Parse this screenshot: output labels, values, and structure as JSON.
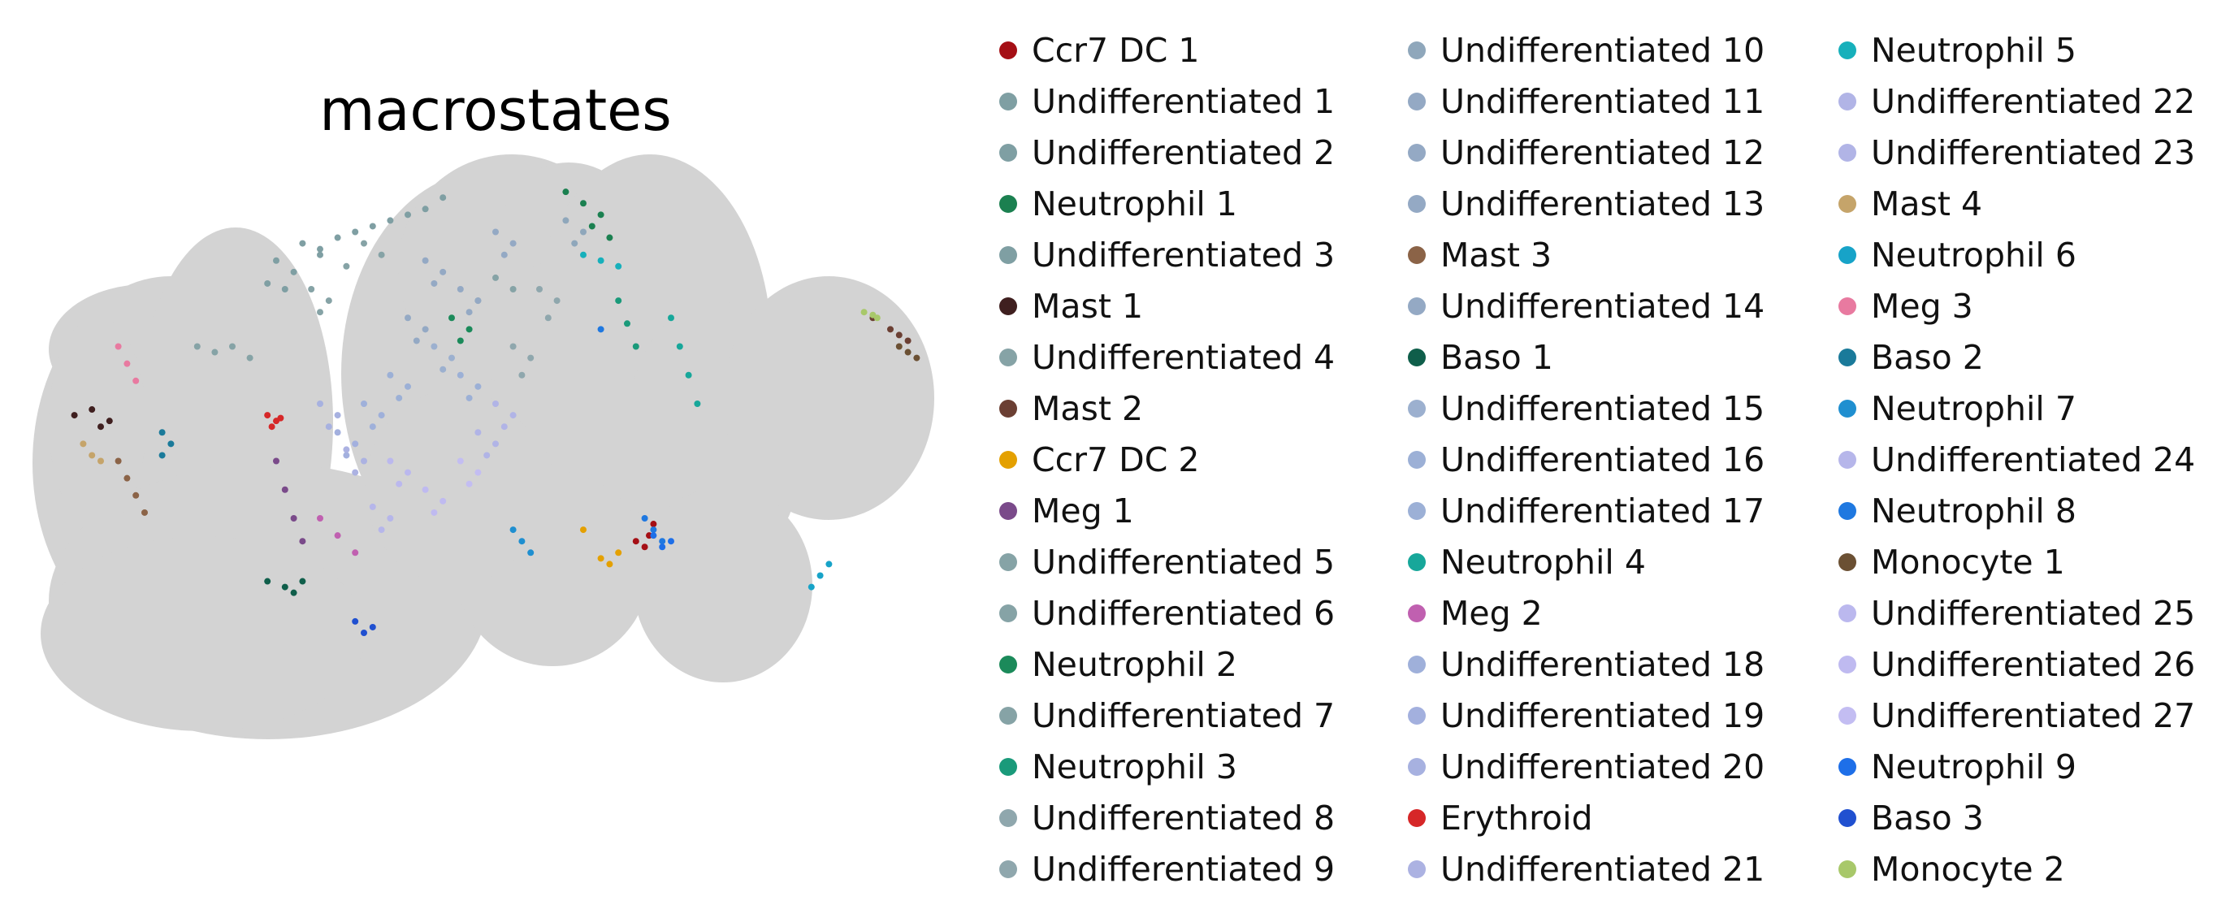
{
  "chart_data": {
    "type": "scatter",
    "title": "macrostates",
    "xlabel": "",
    "ylabel": "",
    "grid": false,
    "legend_position": "right",
    "background_color": "#d3d3d3",
    "series": [
      {
        "name": "Ccr7 DC 1",
        "color": "#a50f15",
        "points": [
          [
            0.66,
            0.64
          ],
          [
            0.68,
            0.61
          ],
          [
            0.675,
            0.63
          ],
          [
            0.67,
            0.65
          ]
        ]
      },
      {
        "name": "Undifferentiated 1",
        "color": "#7f9fa3",
        "points": [
          [
            0.28,
            0.12
          ],
          [
            0.3,
            0.13
          ],
          [
            0.32,
            0.11
          ],
          [
            0.34,
            0.1
          ],
          [
            0.3,
            0.14
          ]
        ]
      },
      {
        "name": "Undifferentiated 2",
        "color": "#7f9fa3",
        "points": [
          [
            0.36,
            0.09
          ],
          [
            0.38,
            0.08
          ],
          [
            0.4,
            0.07
          ],
          [
            0.42,
            0.06
          ],
          [
            0.44,
            0.04
          ]
        ]
      },
      {
        "name": "Neutrophil 1",
        "color": "#1b8050",
        "points": [
          [
            0.58,
            0.03
          ],
          [
            0.6,
            0.05
          ],
          [
            0.62,
            0.07
          ],
          [
            0.61,
            0.09
          ],
          [
            0.63,
            0.11
          ]
        ]
      },
      {
        "name": "Undifferentiated 3",
        "color": "#7f9fa3",
        "points": [
          [
            0.25,
            0.15
          ],
          [
            0.27,
            0.17
          ],
          [
            0.24,
            0.19
          ],
          [
            0.26,
            0.2
          ]
        ]
      },
      {
        "name": "Mast 1",
        "color": "#3f1f1f",
        "points": [
          [
            0.02,
            0.42
          ],
          [
            0.04,
            0.41
          ],
          [
            0.06,
            0.43
          ],
          [
            0.05,
            0.44
          ]
        ]
      },
      {
        "name": "Undifferentiated 4",
        "color": "#86a3a6",
        "points": [
          [
            0.16,
            0.3
          ],
          [
            0.18,
            0.31
          ],
          [
            0.2,
            0.3
          ],
          [
            0.22,
            0.32
          ]
        ]
      },
      {
        "name": "Mast 2",
        "color": "#6b3f33",
        "points": [
          [
            0.93,
            0.25
          ],
          [
            0.95,
            0.27
          ],
          [
            0.96,
            0.28
          ],
          [
            0.97,
            0.29
          ]
        ]
      },
      {
        "name": "Ccr7 DC 2",
        "color": "#e4a000",
        "points": [
          [
            0.62,
            0.67
          ],
          [
            0.63,
            0.68
          ],
          [
            0.64,
            0.66
          ],
          [
            0.6,
            0.62
          ]
        ]
      },
      {
        "name": "Meg 1",
        "color": "#7a4a8a",
        "points": [
          [
            0.25,
            0.5
          ],
          [
            0.26,
            0.55
          ],
          [
            0.27,
            0.6
          ],
          [
            0.28,
            0.64
          ]
        ]
      },
      {
        "name": "Undifferentiated 5",
        "color": "#86a3a6",
        "points": [
          [
            0.35,
            0.12
          ],
          [
            0.37,
            0.14
          ],
          [
            0.33,
            0.16
          ]
        ]
      },
      {
        "name": "Undifferentiated 6",
        "color": "#86a3a6",
        "points": [
          [
            0.5,
            0.18
          ],
          [
            0.52,
            0.2
          ],
          [
            0.48,
            0.22
          ]
        ]
      },
      {
        "name": "Neutrophil 2",
        "color": "#1b8a5a",
        "points": [
          [
            0.45,
            0.25
          ],
          [
            0.47,
            0.27
          ],
          [
            0.46,
            0.29
          ]
        ]
      },
      {
        "name": "Undifferentiated 7",
        "color": "#86a3a6",
        "points": [
          [
            0.29,
            0.2
          ],
          [
            0.31,
            0.22
          ],
          [
            0.3,
            0.24
          ]
        ]
      },
      {
        "name": "Neutrophil 3",
        "color": "#1a9a7a",
        "points": [
          [
            0.64,
            0.22
          ],
          [
            0.65,
            0.26
          ],
          [
            0.66,
            0.3
          ]
        ]
      },
      {
        "name": "Undifferentiated 8",
        "color": "#8fa7ad",
        "points": [
          [
            0.55,
            0.2
          ],
          [
            0.57,
            0.22
          ],
          [
            0.56,
            0.25
          ]
        ]
      },
      {
        "name": "Undifferentiated 9",
        "color": "#8fa7ad",
        "points": [
          [
            0.52,
            0.3
          ],
          [
            0.54,
            0.32
          ],
          [
            0.53,
            0.35
          ]
        ]
      },
      {
        "name": "Undifferentiated 10",
        "color": "#8fa7bb",
        "points": [
          [
            0.58,
            0.08
          ],
          [
            0.6,
            0.1
          ],
          [
            0.59,
            0.12
          ]
        ]
      },
      {
        "name": "Undifferentiated 11",
        "color": "#94a9c4",
        "points": [
          [
            0.42,
            0.15
          ],
          [
            0.44,
            0.17
          ],
          [
            0.43,
            0.19
          ]
        ]
      },
      {
        "name": "Undifferentiated 12",
        "color": "#94a9c4",
        "points": [
          [
            0.5,
            0.1
          ],
          [
            0.52,
            0.12
          ],
          [
            0.51,
            0.14
          ]
        ]
      },
      {
        "name": "Undifferentiated 13",
        "color": "#94a9c4",
        "points": [
          [
            0.46,
            0.2
          ],
          [
            0.48,
            0.22
          ],
          [
            0.47,
            0.24
          ]
        ]
      },
      {
        "name": "Mast 3",
        "color": "#8b6347",
        "points": [
          [
            0.07,
            0.5
          ],
          [
            0.08,
            0.53
          ],
          [
            0.09,
            0.56
          ],
          [
            0.1,
            0.59
          ]
        ]
      },
      {
        "name": "Undifferentiated 14",
        "color": "#94a9c4",
        "points": [
          [
            0.4,
            0.25
          ],
          [
            0.42,
            0.27
          ],
          [
            0.41,
            0.29
          ]
        ]
      },
      {
        "name": "Baso 1",
        "color": "#0f5e4a",
        "points": [
          [
            0.24,
            0.71
          ],
          [
            0.26,
            0.72
          ],
          [
            0.28,
            0.71
          ],
          [
            0.27,
            0.73
          ]
        ]
      },
      {
        "name": "Undifferentiated 15",
        "color": "#9cb0cf",
        "points": [
          [
            0.43,
            0.3
          ],
          [
            0.45,
            0.32
          ],
          [
            0.44,
            0.34
          ]
        ]
      },
      {
        "name": "Undifferentiated 16",
        "color": "#9cb0d6",
        "points": [
          [
            0.46,
            0.35
          ],
          [
            0.48,
            0.37
          ],
          [
            0.47,
            0.39
          ]
        ]
      },
      {
        "name": "Undifferentiated 17",
        "color": "#9cb0d6",
        "points": [
          [
            0.38,
            0.35
          ],
          [
            0.4,
            0.37
          ],
          [
            0.39,
            0.39
          ]
        ]
      },
      {
        "name": "Neutrophil 4",
        "color": "#17a79a",
        "points": [
          [
            0.7,
            0.25
          ],
          [
            0.71,
            0.3
          ],
          [
            0.72,
            0.35
          ],
          [
            0.73,
            0.4
          ]
        ]
      },
      {
        "name": "Meg 2",
        "color": "#c060b0",
        "points": [
          [
            0.3,
            0.6
          ],
          [
            0.32,
            0.63
          ],
          [
            0.34,
            0.66
          ]
        ]
      },
      {
        "name": "Undifferentiated 18",
        "color": "#9fb0da",
        "points": [
          [
            0.35,
            0.4
          ],
          [
            0.37,
            0.42
          ],
          [
            0.36,
            0.44
          ]
        ]
      },
      {
        "name": "Undifferentiated 19",
        "color": "#a3b0de",
        "points": [
          [
            0.32,
            0.45
          ],
          [
            0.34,
            0.47
          ],
          [
            0.33,
            0.49
          ]
        ]
      },
      {
        "name": "Undifferentiated 20",
        "color": "#a7b1e0",
        "points": [
          [
            0.3,
            0.4
          ],
          [
            0.32,
            0.42
          ],
          [
            0.31,
            0.44
          ]
        ]
      },
      {
        "name": "Erythroid",
        "color": "#d62728",
        "points": [
          [
            0.24,
            0.42
          ],
          [
            0.25,
            0.43
          ],
          [
            0.245,
            0.44
          ],
          [
            0.255,
            0.425
          ]
        ]
      },
      {
        "name": "Undifferentiated 21",
        "color": "#acb2e2",
        "points": [
          [
            0.33,
            0.48
          ],
          [
            0.35,
            0.5
          ],
          [
            0.34,
            0.52
          ]
        ]
      },
      {
        "name": "Neutrophil 5",
        "color": "#17b0bb",
        "points": [
          [
            0.6,
            0.14
          ],
          [
            0.62,
            0.15
          ],
          [
            0.64,
            0.16
          ]
        ]
      },
      {
        "name": "Undifferentiated 22",
        "color": "#b1b4e6",
        "points": [
          [
            0.5,
            0.4
          ],
          [
            0.52,
            0.42
          ],
          [
            0.51,
            0.44
          ]
        ]
      },
      {
        "name": "Undifferentiated 23",
        "color": "#b1b4e6",
        "points": [
          [
            0.48,
            0.45
          ],
          [
            0.5,
            0.47
          ],
          [
            0.49,
            0.49
          ]
        ]
      },
      {
        "name": "Mast 4",
        "color": "#c5a46a",
        "points": [
          [
            0.03,
            0.47
          ],
          [
            0.04,
            0.49
          ],
          [
            0.05,
            0.5
          ]
        ]
      },
      {
        "name": "Neutrophil 6",
        "color": "#17a3c8",
        "points": [
          [
            0.86,
            0.72
          ],
          [
            0.87,
            0.7
          ],
          [
            0.88,
            0.68
          ]
        ]
      },
      {
        "name": "Meg 3",
        "color": "#e87aa0",
        "points": [
          [
            0.07,
            0.3
          ],
          [
            0.08,
            0.33
          ],
          [
            0.09,
            0.36
          ]
        ]
      },
      {
        "name": "Baso 2",
        "color": "#1a7a9a",
        "points": [
          [
            0.12,
            0.45
          ],
          [
            0.13,
            0.47
          ],
          [
            0.12,
            0.49
          ]
        ]
      },
      {
        "name": "Neutrophil 7",
        "color": "#1f8fd0",
        "points": [
          [
            0.52,
            0.62
          ],
          [
            0.53,
            0.64
          ],
          [
            0.54,
            0.66
          ]
        ]
      },
      {
        "name": "Undifferentiated 24",
        "color": "#b6b6ea",
        "points": [
          [
            0.36,
            0.58
          ],
          [
            0.38,
            0.6
          ],
          [
            0.37,
            0.62
          ]
        ]
      },
      {
        "name": "Neutrophil 8",
        "color": "#1f78e0",
        "points": [
          [
            0.67,
            0.6
          ],
          [
            0.68,
            0.62
          ],
          [
            0.69,
            0.64
          ],
          [
            0.62,
            0.27
          ]
        ]
      },
      {
        "name": "Monocyte 1",
        "color": "#6b5033",
        "points": [
          [
            0.96,
            0.3
          ],
          [
            0.97,
            0.31
          ],
          [
            0.98,
            0.32
          ]
        ]
      },
      {
        "name": "Undifferentiated 25",
        "color": "#bbb8ee",
        "points": [
          [
            0.38,
            0.5
          ],
          [
            0.4,
            0.52
          ],
          [
            0.39,
            0.54
          ]
        ]
      },
      {
        "name": "Undifferentiated 26",
        "color": "#bfbaf0",
        "points": [
          [
            0.42,
            0.55
          ],
          [
            0.44,
            0.57
          ],
          [
            0.43,
            0.59
          ]
        ]
      },
      {
        "name": "Undifferentiated 27",
        "color": "#c3bdf2",
        "points": [
          [
            0.46,
            0.5
          ],
          [
            0.48,
            0.52
          ],
          [
            0.47,
            0.54
          ]
        ]
      },
      {
        "name": "Neutrophil 9",
        "color": "#1e6fe8",
        "points": [
          [
            0.68,
            0.63
          ],
          [
            0.69,
            0.65
          ],
          [
            0.7,
            0.64
          ]
        ]
      },
      {
        "name": "Baso 3",
        "color": "#2050d0",
        "points": [
          [
            0.34,
            0.78
          ],
          [
            0.35,
            0.8
          ],
          [
            0.36,
            0.79
          ]
        ]
      },
      {
        "name": "Monocyte 2",
        "color": "#a8c86a",
        "points": [
          [
            0.92,
            0.24
          ],
          [
            0.93,
            0.245
          ],
          [
            0.935,
            0.25
          ]
        ]
      }
    ]
  }
}
